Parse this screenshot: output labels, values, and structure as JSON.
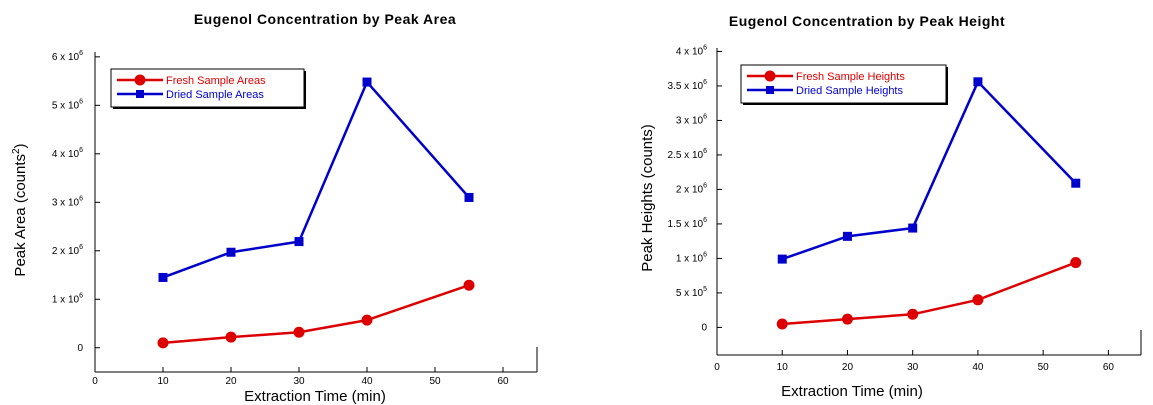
{
  "chart_data": [
    {
      "type": "line",
      "title": "Eugenol Concentration by Peak Area",
      "xlabel": "Extraction Time (min)",
      "ylabel": "Peak Area (counts²)",
      "ylabel_main": "Peak Area (counts",
      "ylabel_sup": "2",
      "ylabel_end": ")",
      "xlim": [
        0,
        65
      ],
      "ylim": [
        -0.5,
        6.1
      ],
      "ytick_unit": "x 10",
      "x_ticks": [
        0,
        10,
        20,
        30,
        40,
        50,
        60
      ],
      "y_ticks": [
        {
          "value": 0,
          "mantissa": "0",
          "exponent": ""
        },
        {
          "value": 1,
          "mantissa": "1",
          "exponent": "6"
        },
        {
          "value": 2,
          "mantissa": "2",
          "exponent": "6"
        },
        {
          "value": 3,
          "mantissa": "3",
          "exponent": "6"
        },
        {
          "value": 4,
          "mantissa": "4",
          "exponent": "6"
        },
        {
          "value": 5,
          "mantissa": "5",
          "exponent": "6"
        },
        {
          "value": 6,
          "mantissa": "6",
          "exponent": "6"
        }
      ],
      "grid": false,
      "legend_position": "top-left",
      "series": [
        {
          "name": "Fresh Sample Areas",
          "color": "#dd0000",
          "marker": "circle",
          "x": [
            10,
            20,
            30,
            40,
            55
          ],
          "y": [
            0.1,
            0.22,
            0.32,
            0.57,
            1.29
          ]
        },
        {
          "name": "Dried Sample Areas",
          "color": "#0000cc",
          "marker": "square",
          "x": [
            10,
            20,
            30,
            40,
            55
          ],
          "y": [
            1.45,
            1.97,
            2.19,
            5.48,
            3.1
          ]
        }
      ]
    },
    {
      "type": "line",
      "title": "Eugenol Concentration by Peak Height",
      "xlabel": "Extraction Time (min)",
      "ylabel": "Peak Heights (counts)",
      "ylabel_main": "Peak Heights (counts)",
      "ylabel_sup": "",
      "ylabel_end": "",
      "xlim": [
        0,
        65
      ],
      "ylim": [
        -0.4,
        4.05
      ],
      "ytick_unit": "x 10",
      "x_ticks": [
        0,
        10,
        20,
        30,
        40,
        50,
        60
      ],
      "y_ticks": [
        {
          "value": 0,
          "mantissa": "0",
          "exponent": ""
        },
        {
          "value": 0.5,
          "mantissa": "5",
          "exponent": "5"
        },
        {
          "value": 1,
          "mantissa": "1",
          "exponent": "6"
        },
        {
          "value": 1.5,
          "mantissa": "1.5",
          "exponent": "6"
        },
        {
          "value": 2,
          "mantissa": "2",
          "exponent": "6"
        },
        {
          "value": 2.5,
          "mantissa": "2.5",
          "exponent": "6"
        },
        {
          "value": 3,
          "mantissa": "3",
          "exponent": "6"
        },
        {
          "value": 3.5,
          "mantissa": "3.5",
          "exponent": "6"
        },
        {
          "value": 4,
          "mantissa": "4",
          "exponent": "6"
        }
      ],
      "grid": false,
      "legend_position": "top-left",
      "series": [
        {
          "name": "Fresh Sample Heights",
          "color": "#dd0000",
          "marker": "circle",
          "x": [
            10,
            20,
            30,
            40,
            55
          ],
          "y": [
            0.05,
            0.12,
            0.19,
            0.4,
            0.94
          ]
        },
        {
          "name": "Dried Sample Heights",
          "color": "#0000cc",
          "marker": "square",
          "x": [
            10,
            20,
            30,
            40,
            55
          ],
          "y": [
            0.99,
            1.32,
            1.44,
            3.56,
            2.09
          ]
        }
      ]
    }
  ]
}
